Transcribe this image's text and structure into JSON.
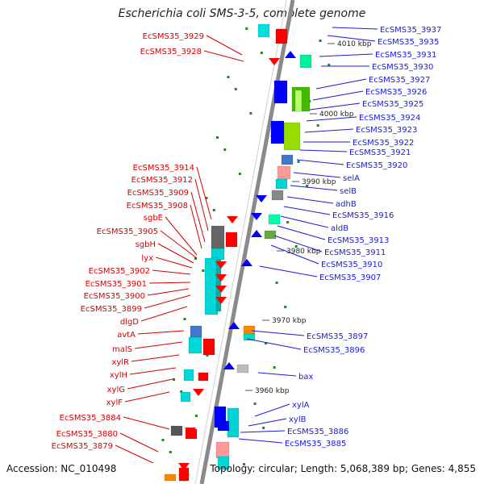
{
  "title": "Escherichia coli SMS-3-5, complete genome",
  "accession": "Accession: NC_010498",
  "topology": "Topology: circular; Length: 5,068,389 bp; Genes: 4,855",
  "colors": {
    "left_labels": "#d40000",
    "right_labels": "#1a1ad6",
    "backbone": "#8a8a8a",
    "tick": "#1a8a1a",
    "forward_arrow": "#ff0000",
    "reverse_arrow": "#0000ff"
  },
  "ruler_labels": [
    "4010 kbp",
    "4000 kbp",
    "3990 kbp",
    "3980 kbp",
    "3970 kbp",
    "3960 kbp"
  ],
  "left_genes": [
    "EcSMS35_3929",
    "EcSMS35_3928",
    "EcSMS35_3914",
    "EcSMS35_3912",
    "EcSMS35_3909",
    "EcSMS35_3908",
    "sgbE",
    "EcSMS35_3905",
    "sgbH",
    "lyx",
    "EcSMS35_3902",
    "EcSMS35_3901",
    "EcSMS35_3900",
    "EcSMS35_3899",
    "dlgD",
    "avtA",
    "malS",
    "xylR",
    "xylH",
    "xylG",
    "xylF",
    "EcSMS35_3884",
    "EcSMS35_3880",
    "EcSMS35_3879"
  ],
  "right_genes": [
    "EcSMS35_3937",
    "EcSMS35_3935",
    "EcSMS35_3931",
    "EcSMS35_3930",
    "EcSMS35_3927",
    "EcSMS35_3926",
    "EcSMS35_3925",
    "EcSMS35_3924",
    "EcSMS35_3923",
    "EcSMS35_3922",
    "EcSMS35_3921",
    "EcSMS35_3920",
    "selA",
    "selB",
    "adhB",
    "EcSMS35_3916",
    "aldB",
    "EcSMS35_3913",
    "EcSMS35_3911",
    "EcSMS35_3910",
    "EcSMS35_3907",
    "EcSMS35_3897",
    "EcSMS35_3896",
    "bax",
    "xylA",
    "xylB",
    "EcSMS35_3886",
    "EcSMS35_3885"
  ]
}
